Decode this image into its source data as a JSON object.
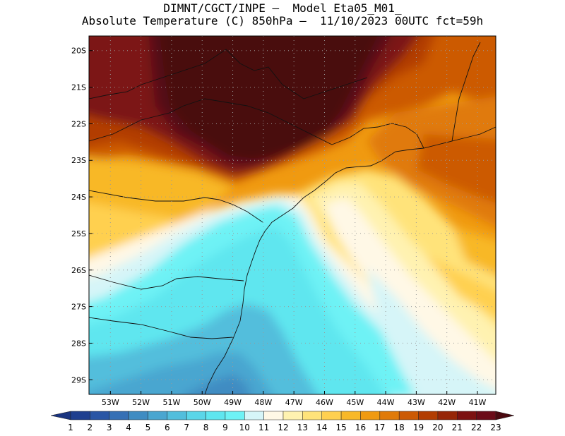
{
  "header": {
    "line1": "DIMNT/CGCT/INPE –  Model Eta05_M01_",
    "line2": "Absolute Temperature (C) 850hPa –  11/10/2023 00UTC fct=59h"
  },
  "map": {
    "lat_labels": [
      "20S",
      "21S",
      "22S",
      "23S",
      "24S",
      "25S",
      "26S",
      "27S",
      "28S",
      "29S"
    ],
    "lon_labels": [
      "53W",
      "52W",
      "51W",
      "50W",
      "49W",
      "48W",
      "47W",
      "46W",
      "45W",
      "44W",
      "43W",
      "42W",
      "41W"
    ],
    "grid_lines": "dotted",
    "extent": {
      "lon_min": -53.7,
      "lon_max": -40.4,
      "lat_min": -29.4,
      "lat_max": -19.6
    }
  },
  "colorbar": {
    "labels": [
      "1",
      "2",
      "3",
      "4",
      "5",
      "6",
      "7",
      "8",
      "9",
      "10",
      "11",
      "12",
      "13",
      "14",
      "15",
      "16",
      "17",
      "18",
      "19",
      "20",
      "21",
      "22",
      "23"
    ],
    "colors": [
      "#1f3f8f",
      "#2a56a5",
      "#3670b5",
      "#3f8cc2",
      "#4aa6d0",
      "#52bedc",
      "#5ad6e8",
      "#5fe6ef",
      "#6ef2f5",
      "#d6f5f8",
      "#fff8e6",
      "#fff2b0",
      "#ffe37a",
      "#ffd050",
      "#f8b828",
      "#f09a10",
      "#e07a08",
      "#cc5a04",
      "#b23d02",
      "#962608",
      "#7c1212",
      "#6b0c18",
      "#560816"
    ],
    "under_color": "#1a3580",
    "over_color": "#4a0a10"
  }
}
